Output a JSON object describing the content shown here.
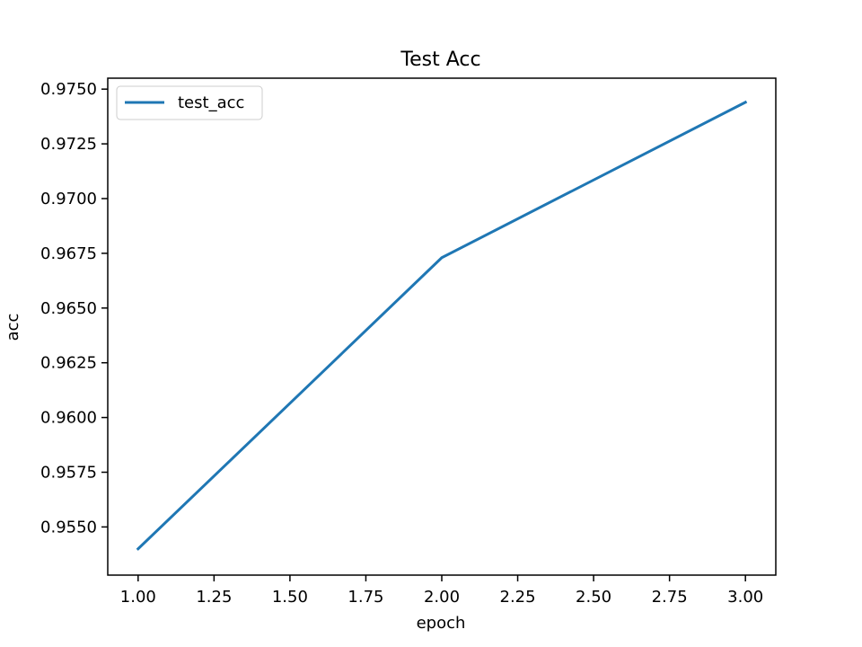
{
  "chart_data": {
    "type": "line",
    "title": "Test Acc",
    "xlabel": "epoch",
    "ylabel": "acc",
    "xlim": [
      0.9,
      3.1
    ],
    "ylim": [
      0.9528,
      0.9755
    ],
    "x_ticks": [
      1.0,
      1.25,
      1.5,
      1.75,
      2.0,
      2.25,
      2.5,
      2.75,
      3.0
    ],
    "x_tick_labels": [
      "1.00",
      "1.25",
      "1.50",
      "1.75",
      "2.00",
      "2.25",
      "2.50",
      "2.75",
      "3.00"
    ],
    "y_ticks": [
      0.955,
      0.9575,
      0.96,
      0.9625,
      0.965,
      0.9675,
      0.97,
      0.9725,
      0.975
    ],
    "y_tick_labels": [
      "0.9550",
      "0.9575",
      "0.9600",
      "0.9625",
      "0.9650",
      "0.9675",
      "0.9700",
      "0.9725",
      "0.9750"
    ],
    "grid": false,
    "legend_position": "top-left",
    "series": [
      {
        "name": "test_acc",
        "color": "#1f77b4",
        "x": [
          1,
          2,
          3
        ],
        "y": [
          0.954,
          0.9673,
          0.9744
        ]
      }
    ]
  }
}
